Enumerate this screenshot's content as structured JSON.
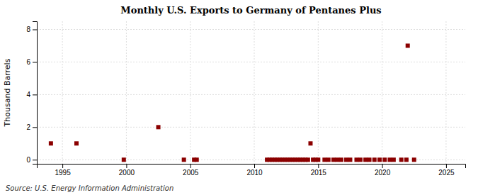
{
  "chart_data": {
    "type": "scatter",
    "title": "Monthly U.S. Exports to Germany of Pentanes Plus",
    "ylabel": "Thousand Barrels",
    "source": "Source: U.S. Energy Information Administration",
    "x": [
      1994.1,
      1996.1,
      1999.8,
      2002.5,
      2004.5,
      2005.3,
      2005.5,
      2011.0,
      2011.2,
      2011.4,
      2011.6,
      2011.8,
      2012.0,
      2012.2,
      2012.4,
      2012.6,
      2012.8,
      2013.0,
      2013.2,
      2013.4,
      2013.6,
      2013.8,
      2014.0,
      2014.2,
      2014.4,
      2014.6,
      2014.8,
      2015.0,
      2015.5,
      2015.8,
      2016.2,
      2016.5,
      2016.8,
      2017.2,
      2017.5,
      2018.0,
      2018.3,
      2018.7,
      2019.0,
      2019.4,
      2019.8,
      2020.2,
      2020.6,
      2020.9,
      2021.5,
      2021.9,
      2022.0,
      2022.5
    ],
    "values": [
      1,
      1,
      0,
      2,
      0,
      0,
      0,
      0,
      0,
      0,
      0,
      0,
      0,
      0,
      0,
      0,
      0,
      0,
      0,
      0,
      0,
      0,
      0,
      0,
      1,
      0,
      0,
      0,
      0,
      0,
      0,
      0,
      0,
      0,
      0,
      0,
      0,
      0,
      0,
      0,
      0,
      0,
      0,
      0,
      0,
      0,
      7,
      0
    ],
    "color": "#8b0000",
    "marker": "square",
    "xlim": [
      1993.0,
      2026.5
    ],
    "ylim": [
      -0.25,
      8.5
    ],
    "xticks": [
      1995,
      2000,
      2005,
      2010,
      2015,
      2020,
      2025
    ],
    "yticks": [
      0,
      2,
      4,
      6,
      8
    ],
    "grid": true
  }
}
